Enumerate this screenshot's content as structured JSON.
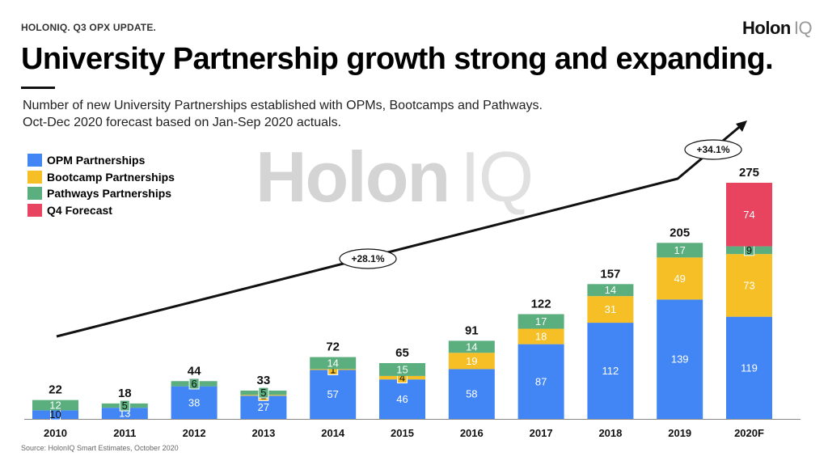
{
  "header": {
    "kicker": "HOLONIQ. Q3 OPX UPDATE.",
    "logo_main": "Holon",
    "logo_iq": "IQ",
    "title": "University Partnership growth strong and expanding.",
    "subtitle_line1": "Number of new University Partnerships established with OPMs, Bootcamps and Pathways.",
    "subtitle_line2": "Oct-Dec 2020 forecast based on Jan-Sep 2020 actuals."
  },
  "watermark": {
    "main": "Holon",
    "iq": "IQ"
  },
  "source": "Source: HolonIQ Smart Estimates, October 2020",
  "colors": {
    "opm": "#4285F4",
    "bootcamp": "#F6BF26",
    "pathways": "#5BAE7E",
    "forecast": "#E8445F"
  },
  "chart_data": {
    "type": "bar",
    "stacked": true,
    "categories": [
      "2010",
      "2011",
      "2012",
      "2013",
      "2014",
      "2015",
      "2016",
      "2017",
      "2018",
      "2019",
      "2020F"
    ],
    "series": [
      {
        "name": "OPM Partnerships",
        "color": "#4285F4",
        "values": [
          10,
          13,
          38,
          27,
          57,
          46,
          58,
          87,
          112,
          139,
          119
        ]
      },
      {
        "name": "Bootcamp Partnerships",
        "color": "#F6BF26",
        "values": [
          0,
          0,
          0,
          1,
          1,
          4,
          19,
          18,
          31,
          49,
          73
        ]
      },
      {
        "name": "Pathways Partnerships",
        "color": "#5BAE7E",
        "values": [
          12,
          5,
          6,
          5,
          14,
          15,
          14,
          17,
          14,
          17,
          9
        ]
      },
      {
        "name": "Q4 Forecast",
        "color": "#E8445F",
        "values": [
          0,
          0,
          0,
          0,
          0,
          0,
          0,
          0,
          0,
          0,
          74
        ]
      }
    ],
    "totals": [
      22,
      18,
      44,
      33,
      72,
      65,
      91,
      122,
      157,
      205,
      275
    ],
    "ylim": [
      0,
      275
    ],
    "legend_position": "top-left",
    "grid": false,
    "annotations": [
      {
        "label": "+28.1%",
        "from": "2010",
        "to": "2019"
      },
      {
        "label": "+34.1%",
        "from": "2019",
        "to": "2020F"
      }
    ]
  }
}
